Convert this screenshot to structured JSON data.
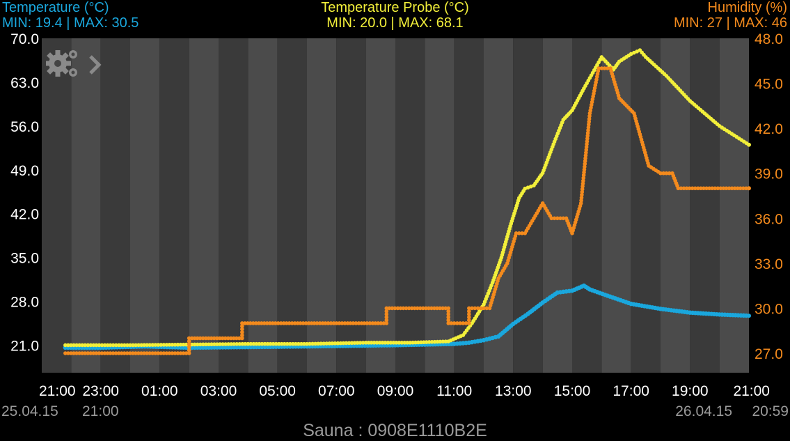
{
  "header": {
    "left": {
      "title": "Temperature (°C)",
      "range": "MIN: 19.4 | MAX: 30.5"
    },
    "center": {
      "title": "Temperature Probe (°C)",
      "range": "MIN: 20.0 | MAX: 68.1"
    },
    "right": {
      "title": "Humidity (%)",
      "range": "MIN: 27 | MAX: 46"
    }
  },
  "footer": {
    "device": "Sauna : 0908E1110B2E"
  },
  "colors": {
    "temperature": "#1aa7dd",
    "probe": "#f2ef3a",
    "humidity": "#f38a1d",
    "axis_left": "#ffffff",
    "date_label": "#9a9a9a"
  },
  "icons": [
    "gears-icon",
    "chevron-right-icon"
  ],
  "chart_data": {
    "type": "line",
    "x_unit": "hours",
    "xlim": [
      0,
      24
    ],
    "x_tick_labels": [
      "21:00",
      "23:00",
      "01:00",
      "03:00",
      "05:00",
      "07:00",
      "09:00",
      "11:00",
      "13:00",
      "15:00",
      "17:00",
      "19:00",
      "21:00"
    ],
    "date_labels": {
      "start_date": "25.04.15",
      "start_time": "21:00",
      "end_date": "26.04.15",
      "end_time": "20:59"
    },
    "y_left": {
      "ylim": [
        16.6,
        70.0
      ],
      "ticks": [
        "70.0",
        "63.0",
        "56.0",
        "49.0",
        "42.0",
        "35.0",
        "28.0",
        "21.0"
      ]
    },
    "y_right": {
      "ylim": [
        25.7,
        48.0
      ],
      "ticks": [
        "48.0",
        "45.0",
        "42.0",
        "39.0",
        "36.0",
        "33.0",
        "30.0",
        "27.0"
      ]
    },
    "grid": "alternating vertical bands",
    "series": [
      {
        "name": "Temperature (°C)",
        "axis": "left",
        "points": [
          [
            0.8,
            20.6
          ],
          [
            2,
            20.6
          ],
          [
            3.5,
            20.8
          ],
          [
            5,
            20.6
          ],
          [
            7,
            20.7
          ],
          [
            9,
            20.8
          ],
          [
            10.5,
            20.9
          ],
          [
            12,
            21.0
          ],
          [
            13,
            21.1
          ],
          [
            14,
            21.2
          ],
          [
            14.5,
            21.4
          ],
          [
            15,
            21.8
          ],
          [
            15.5,
            22.4
          ],
          [
            16,
            24.4
          ],
          [
            16.5,
            26.0
          ],
          [
            17,
            27.8
          ],
          [
            17.5,
            29.4
          ],
          [
            18,
            29.7
          ],
          [
            18.4,
            30.5
          ],
          [
            18.6,
            29.9
          ],
          [
            19.2,
            28.9
          ],
          [
            20,
            27.6
          ],
          [
            21,
            26.8
          ],
          [
            22,
            26.2
          ],
          [
            23,
            25.9
          ],
          [
            24,
            25.7
          ]
        ]
      },
      {
        "name": "Temperature Probe (°C)",
        "axis": "left",
        "points": [
          [
            0.8,
            21.0
          ],
          [
            3,
            21.0
          ],
          [
            5,
            21.1
          ],
          [
            7,
            21.2
          ],
          [
            9,
            21.2
          ],
          [
            11,
            21.4
          ],
          [
            12.5,
            21.4
          ],
          [
            13.8,
            21.6
          ],
          [
            14.3,
            22.6
          ],
          [
            14.6,
            24.5
          ],
          [
            15,
            27.5
          ],
          [
            15.3,
            31.0
          ],
          [
            15.6,
            35.0
          ],
          [
            15.9,
            40.0
          ],
          [
            16.2,
            44.5
          ],
          [
            16.4,
            46.0
          ],
          [
            16.7,
            46.5
          ],
          [
            17,
            48.5
          ],
          [
            17.4,
            53.5
          ],
          [
            17.7,
            57.0
          ],
          [
            18,
            58.5
          ],
          [
            18.4,
            62.0
          ],
          [
            18.7,
            64.5
          ],
          [
            19,
            67.0
          ],
          [
            19.2,
            66.0
          ],
          [
            19.4,
            65.0
          ],
          [
            19.6,
            66.3
          ],
          [
            20,
            67.5
          ],
          [
            20.3,
            68.1
          ],
          [
            20.5,
            67.0
          ],
          [
            21.2,
            64.0
          ],
          [
            22,
            60.0
          ],
          [
            22.5,
            58.0
          ],
          [
            23,
            56.0
          ],
          [
            23.5,
            54.5
          ],
          [
            24,
            53.0
          ]
        ]
      },
      {
        "name": "Humidity (%)",
        "axis": "right",
        "points": [
          [
            0.8,
            27.0
          ],
          [
            5.0,
            27.0
          ],
          [
            5.0,
            28.0
          ],
          [
            6.8,
            28.0
          ],
          [
            6.8,
            29.0
          ],
          [
            11.7,
            29.0
          ],
          [
            11.7,
            30.0
          ],
          [
            13.8,
            30.0
          ],
          [
            13.8,
            29.0
          ],
          [
            14.5,
            29.0
          ],
          [
            14.5,
            30.0
          ],
          [
            15.2,
            30.0
          ],
          [
            15.5,
            32.0
          ],
          [
            15.8,
            33.0
          ],
          [
            16.1,
            35.0
          ],
          [
            16.4,
            35.0
          ],
          [
            16.7,
            36.0
          ],
          [
            17,
            37.0
          ],
          [
            17.3,
            36.0
          ],
          [
            17.8,
            36.0
          ],
          [
            18,
            35.0
          ],
          [
            18.3,
            37.0
          ],
          [
            18.6,
            43.0
          ],
          [
            18.9,
            46.0
          ],
          [
            19.3,
            46.0
          ],
          [
            19.6,
            44.0
          ],
          [
            20.1,
            43.0
          ],
          [
            20.6,
            39.5
          ],
          [
            21,
            39.0
          ],
          [
            21.4,
            39.0
          ],
          [
            21.6,
            38.0
          ],
          [
            24,
            38.0
          ]
        ]
      }
    ]
  }
}
